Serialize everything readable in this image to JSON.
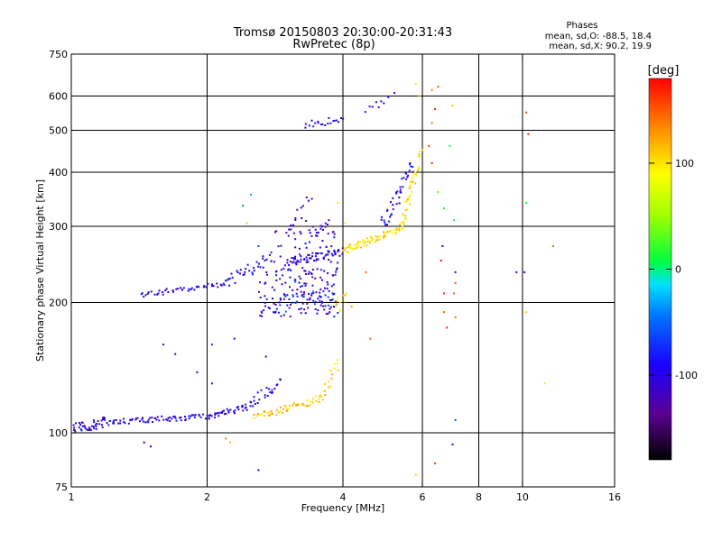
{
  "chart_data": {
    "type": "scatter",
    "title": "Tromsø 20150803 20:30:00-20:31:43",
    "subtitle": "RwPretec (8p)",
    "stats": {
      "heading": "Phases",
      "line_o": "mean, sd,O: -88.5, 18.4",
      "line_x": "mean, sd,X:  90.2, 19.9"
    },
    "xlabel": "Frequency [MHz]",
    "ylabel": "Stationary phase Virtual Height [km]",
    "x_scale": "log",
    "y_scale": "log",
    "xlim": [
      1,
      16
    ],
    "ylim": [
      75,
      750
    ],
    "xticks": [
      1,
      2,
      4,
      6,
      8,
      10,
      16
    ],
    "xtick_labels": [
      "1",
      "2",
      "4",
      "6",
      "8",
      "10",
      "16"
    ],
    "yticks": [
      75,
      100,
      200,
      300,
      400,
      500,
      600,
      750
    ],
    "ytick_labels": [
      "75",
      "100",
      "200",
      "300",
      "400",
      "500",
      "600",
      "750"
    ],
    "grid_x": [
      2,
      4,
      6,
      8,
      10
    ],
    "grid_y": [
      100,
      200,
      300,
      400,
      500,
      600
    ],
    "colorbar": {
      "label": "[deg]",
      "range": [
        -180,
        180
      ],
      "ticks": [
        100,
        0,
        -100
      ],
      "tick_labels": [
        "100",
        "0",
        "-100"
      ]
    },
    "traces": [
      {
        "x_from": 1.0,
        "x_to": 1.2,
        "y_from": 102,
        "y_to": 106,
        "phase": -100,
        "n": 45,
        "scatter": 0.03
      },
      {
        "x_from": 1.2,
        "x_to": 2.0,
        "y_from": 106,
        "y_to": 109,
        "phase": -95,
        "n": 70,
        "scatter": 0.015
      },
      {
        "x_from": 2.0,
        "x_to": 2.4,
        "y_from": 109,
        "y_to": 114,
        "phase": -95,
        "n": 30,
        "scatter": 0.015
      },
      {
        "x_from": 2.4,
        "x_to": 2.9,
        "y_from": 114,
        "y_to": 130,
        "phase": -90,
        "n": 30,
        "scatter": 0.03
      },
      {
        "x_from": 2.55,
        "x_to": 3.6,
        "y_from": 109,
        "y_to": 120,
        "phase": 110,
        "n": 55,
        "scatter": 0.02
      },
      {
        "x_from": 3.6,
        "x_to": 3.9,
        "y_from": 120,
        "y_to": 145,
        "phase": 110,
        "n": 18,
        "scatter": 0.04
      },
      {
        "x_from": 1.42,
        "x_to": 2.2,
        "y_from": 208,
        "y_to": 222,
        "phase": -95,
        "n": 45,
        "scatter": 0.015
      },
      {
        "x_from": 2.2,
        "x_to": 2.8,
        "y_from": 222,
        "y_to": 255,
        "phase": -90,
        "n": 35,
        "scatter": 0.03
      },
      {
        "x_from": 3.0,
        "x_to": 4.0,
        "y_from": 248,
        "y_to": 262,
        "phase": -100,
        "n": 60,
        "scatter": 0.02
      },
      {
        "x_from": 4.0,
        "x_to": 4.6,
        "y_from": 262,
        "y_to": 278,
        "phase": 100,
        "n": 35,
        "scatter": 0.02
      },
      {
        "x_from": 4.6,
        "x_to": 5.4,
        "y_from": 278,
        "y_to": 300,
        "phase": 105,
        "n": 35,
        "scatter": 0.02
      },
      {
        "x_from": 5.4,
        "x_to": 5.95,
        "y_from": 300,
        "y_to": 440,
        "phase": 100,
        "n": 45,
        "scatter": 0.04
      },
      {
        "x_from": 4.9,
        "x_to": 5.7,
        "y_from": 300,
        "y_to": 420,
        "phase": -95,
        "n": 40,
        "scatter": 0.05
      },
      {
        "x_from": 3.3,
        "x_to": 4.0,
        "y_from": 515,
        "y_to": 530,
        "phase": -95,
        "n": 20,
        "scatter": 0.02
      },
      {
        "x_from": 4.5,
        "x_to": 5.1,
        "y_from": 560,
        "y_to": 600,
        "phase": -95,
        "n": 8,
        "scatter": 0.02
      },
      {
        "x_from": 3.0,
        "x_to": 3.4,
        "y_from": 280,
        "y_to": 340,
        "phase": -110,
        "n": 15,
        "scatter": 0.06
      },
      {
        "x_from": 3.5,
        "x_to": 3.7,
        "y_from": 285,
        "y_to": 305,
        "phase": -110,
        "n": 12,
        "scatter": 0.03
      }
    ],
    "clouds": [
      {
        "x_from": 2.6,
        "x_to": 3.9,
        "y_from": 185,
        "y_to": 240,
        "phase": -105,
        "n": 120
      },
      {
        "x_from": 2.8,
        "x_to": 3.9,
        "y_from": 230,
        "y_to": 300,
        "phase": -110,
        "n": 60
      },
      {
        "x_from": 2.9,
        "x_to": 3.8,
        "y_from": 190,
        "y_to": 225,
        "phase": -80,
        "n": 40
      },
      {
        "x_from": 3.8,
        "x_to": 4.2,
        "y_from": 190,
        "y_to": 210,
        "phase": 100,
        "n": 12
      }
    ],
    "points": [
      {
        "x": 1.6,
        "y": 160,
        "phase": -100
      },
      {
        "x": 1.7,
        "y": 152,
        "phase": -90
      },
      {
        "x": 1.9,
        "y": 138,
        "phase": -95
      },
      {
        "x": 2.05,
        "y": 130,
        "phase": -90
      },
      {
        "x": 2.05,
        "y": 160,
        "phase": -70
      },
      {
        "x": 2.4,
        "y": 335,
        "phase": -40
      },
      {
        "x": 2.45,
        "y": 305,
        "phase": 50
      },
      {
        "x": 2.6,
        "y": 270,
        "phase": -60
      },
      {
        "x": 2.5,
        "y": 355,
        "phase": -30
      },
      {
        "x": 2.2,
        "y": 97,
        "phase": 140
      },
      {
        "x": 2.25,
        "y": 95,
        "phase": 120
      },
      {
        "x": 2.6,
        "y": 82,
        "phase": -95
      },
      {
        "x": 2.7,
        "y": 150,
        "phase": -100
      },
      {
        "x": 2.3,
        "y": 165,
        "phase": -90
      },
      {
        "x": 1.5,
        "y": 93,
        "phase": -100
      },
      {
        "x": 1.45,
        "y": 95,
        "phase": -90
      },
      {
        "x": 3.9,
        "y": 340,
        "phase": 100
      },
      {
        "x": 4.05,
        "y": 305,
        "phase": 100
      },
      {
        "x": 4.6,
        "y": 165,
        "phase": 150
      },
      {
        "x": 4.5,
        "y": 235,
        "phase": 150
      },
      {
        "x": 5.2,
        "y": 610,
        "phase": -100
      },
      {
        "x": 4.8,
        "y": 565,
        "phase": -100
      },
      {
        "x": 5.8,
        "y": 640,
        "phase": 100
      },
      {
        "x": 5.9,
        "y": 600,
        "phase": 110
      },
      {
        "x": 6.3,
        "y": 620,
        "phase": 140
      },
      {
        "x": 6.5,
        "y": 630,
        "phase": 160
      },
      {
        "x": 6.4,
        "y": 560,
        "phase": 170
      },
      {
        "x": 6.3,
        "y": 520,
        "phase": 140
      },
      {
        "x": 6.2,
        "y": 460,
        "phase": 160
      },
      {
        "x": 6.3,
        "y": 420,
        "phase": 170
      },
      {
        "x": 6.5,
        "y": 360,
        "phase": 30
      },
      {
        "x": 6.7,
        "y": 330,
        "phase": 10
      },
      {
        "x": 6.65,
        "y": 270,
        "phase": -100
      },
      {
        "x": 6.6,
        "y": 250,
        "phase": 180
      },
      {
        "x": 6.7,
        "y": 210,
        "phase": 160
      },
      {
        "x": 6.8,
        "y": 175,
        "phase": 170
      },
      {
        "x": 6.9,
        "y": 460,
        "phase": 10
      },
      {
        "x": 6.7,
        "y": 190,
        "phase": 150
      },
      {
        "x": 7.0,
        "y": 570,
        "phase": 110
      },
      {
        "x": 7.05,
        "y": 310,
        "phase": 10
      },
      {
        "x": 7.1,
        "y": 235,
        "phase": -90
      },
      {
        "x": 7.1,
        "y": 222,
        "phase": 160
      },
      {
        "x": 7.05,
        "y": 210,
        "phase": 150
      },
      {
        "x": 7.1,
        "y": 185,
        "phase": 150
      },
      {
        "x": 7.1,
        "y": 107,
        "phase": -60
      },
      {
        "x": 7.0,
        "y": 94,
        "phase": -90
      },
      {
        "x": 6.4,
        "y": 85,
        "phase": 160
      },
      {
        "x": 5.8,
        "y": 80,
        "phase": 110
      },
      {
        "x": 9.7,
        "y": 235,
        "phase": -100
      },
      {
        "x": 10.1,
        "y": 235,
        "phase": -95
      },
      {
        "x": 10.2,
        "y": 340,
        "phase": 10
      },
      {
        "x": 10.2,
        "y": 550,
        "phase": 160
      },
      {
        "x": 10.3,
        "y": 490,
        "phase": 170
      },
      {
        "x": 10.2,
        "y": 190,
        "phase": 110
      },
      {
        "x": 11.2,
        "y": 130,
        "phase": 100
      },
      {
        "x": 11.7,
        "y": 270,
        "phase": 150
      }
    ]
  }
}
